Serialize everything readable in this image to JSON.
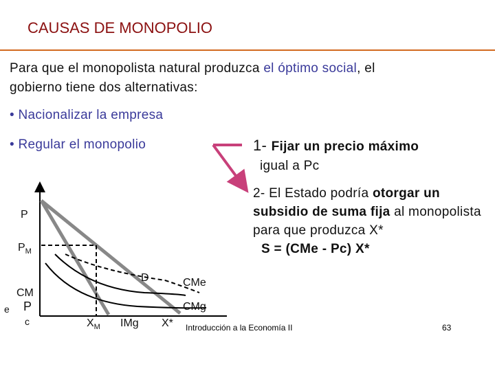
{
  "title": "CAUSAS DE MONOPOLIO",
  "intro": [
    "Para que el monopolista natural produzca ",
    "el óptimo social",
    ", el gobierno tiene dos alternativas:"
  ],
  "bullets": [
    "• Nacionalizar la empresa",
    "• Regular el monopolio"
  ],
  "option_1": [
    "1- ",
    "Fijar un precio máximo",
    "igual a Pc"
  ],
  "option_2": [
    "2- El Estado podría ",
    "otorgar un subsidio de suma fija",
    " al monopolista para que produzca X*",
    "S = (CMe - Pc) X*"
  ],
  "diagram": {
    "labels": {
      "p": "P",
      "pm": "P",
      "pm_sub": "M",
      "d": "D",
      "cme": "CMe",
      "cm": "CM",
      "e": "e",
      "pc": "P",
      "c": "c",
      "cmg": "CMg",
      "xm": "X",
      "xm_sub": "M",
      "img": "IMg",
      "xstar": "X*"
    }
  },
  "footer": {
    "course": "Introducción a la Economía II",
    "page": "63"
  }
}
